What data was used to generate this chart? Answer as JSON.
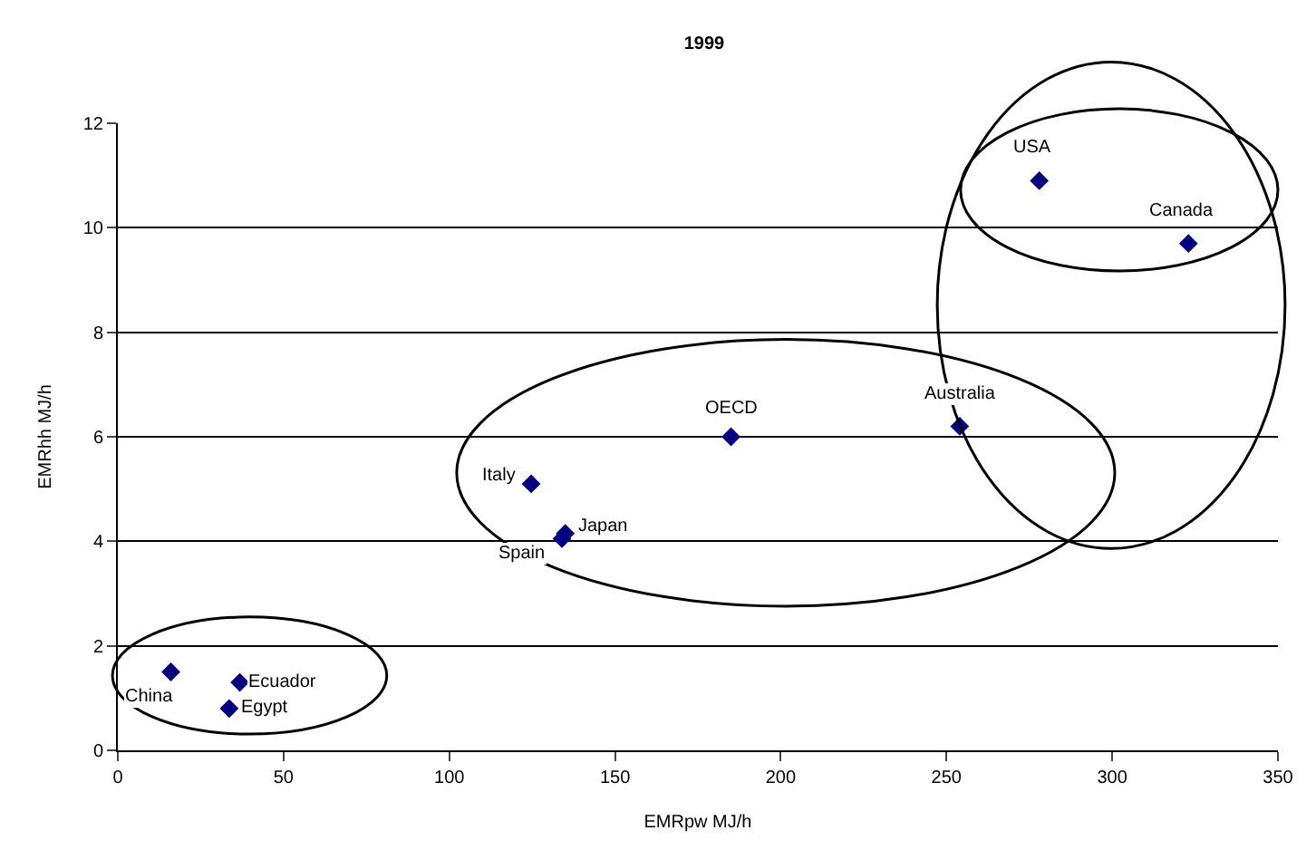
{
  "chart_data": {
    "type": "scatter",
    "title": "1999",
    "xlabel": "EMRpw MJ/h",
    "ylabel": "EMRhh MJ/h",
    "x": [
      16,
      36.8,
      33.6,
      124.7,
      134,
      135,
      185,
      254,
      278,
      323
    ],
    "series": [
      {
        "color": "#000080",
        "values": [
          1.5,
          1.3,
          0.8,
          5.1,
          4.05,
          4.15,
          6.0,
          6.2,
          10.9,
          9.7
        ]
      }
    ],
    "annotations": [
      {
        "text": "China",
        "x": 16,
        "y": 1.5
      },
      {
        "text": "Ecuador",
        "x": 36.8,
        "y": 1.3
      },
      {
        "text": "Egypt",
        "x": 33.6,
        "y": 0.8
      },
      {
        "text": "Italy",
        "x": 124.7,
        "y": 5.1
      },
      {
        "text": "Spain",
        "x": 134,
        "y": 4.05
      },
      {
        "text": "Japan",
        "x": 135,
        "y": 4.15
      },
      {
        "text": "OECD",
        "x": 185,
        "y": 6.0
      },
      {
        "text": "Australia",
        "x": 254,
        "y": 6.2
      },
      {
        "text": "USA",
        "x": 278,
        "y": 10.9
      },
      {
        "text": "Canada",
        "x": 323,
        "y": 9.7
      }
    ],
    "xlim": [
      0,
      350
    ],
    "ylim": [
      0,
      12
    ],
    "xticks": [
      0,
      50,
      100,
      150,
      200,
      250,
      300,
      350
    ],
    "yticks": [
      0,
      2,
      4,
      6,
      8,
      10,
      12
    ],
    "grid": "y",
    "marker": "diamond"
  }
}
